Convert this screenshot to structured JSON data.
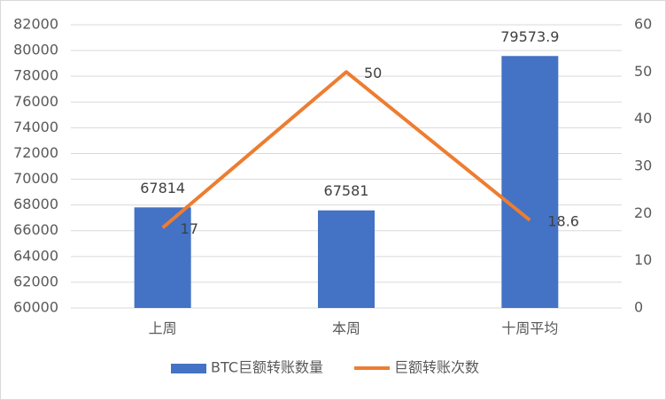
{
  "chart_data": {
    "type": "bar-line",
    "categories": [
      "上周",
      "本周",
      "十周平均"
    ],
    "series": [
      {
        "name": "BTC巨额转账数量",
        "type": "bar",
        "color": "#4472c4",
        "values": [
          67814,
          67581,
          79573.9
        ]
      },
      {
        "name": "巨额转账次数",
        "type": "line",
        "axis": "y2",
        "color": "#ed7d31",
        "values": [
          17,
          50,
          18.6
        ]
      }
    ],
    "ylim": [
      60000,
      82000
    ],
    "yticks": [
      60000,
      62000,
      64000,
      66000,
      68000,
      70000,
      72000,
      74000,
      76000,
      78000,
      80000,
      82000
    ],
    "y2lim": [
      0,
      60
    ],
    "y2ticks": [
      0,
      10,
      20,
      30,
      40,
      50,
      60
    ],
    "grid": true,
    "legend": "bottom"
  }
}
